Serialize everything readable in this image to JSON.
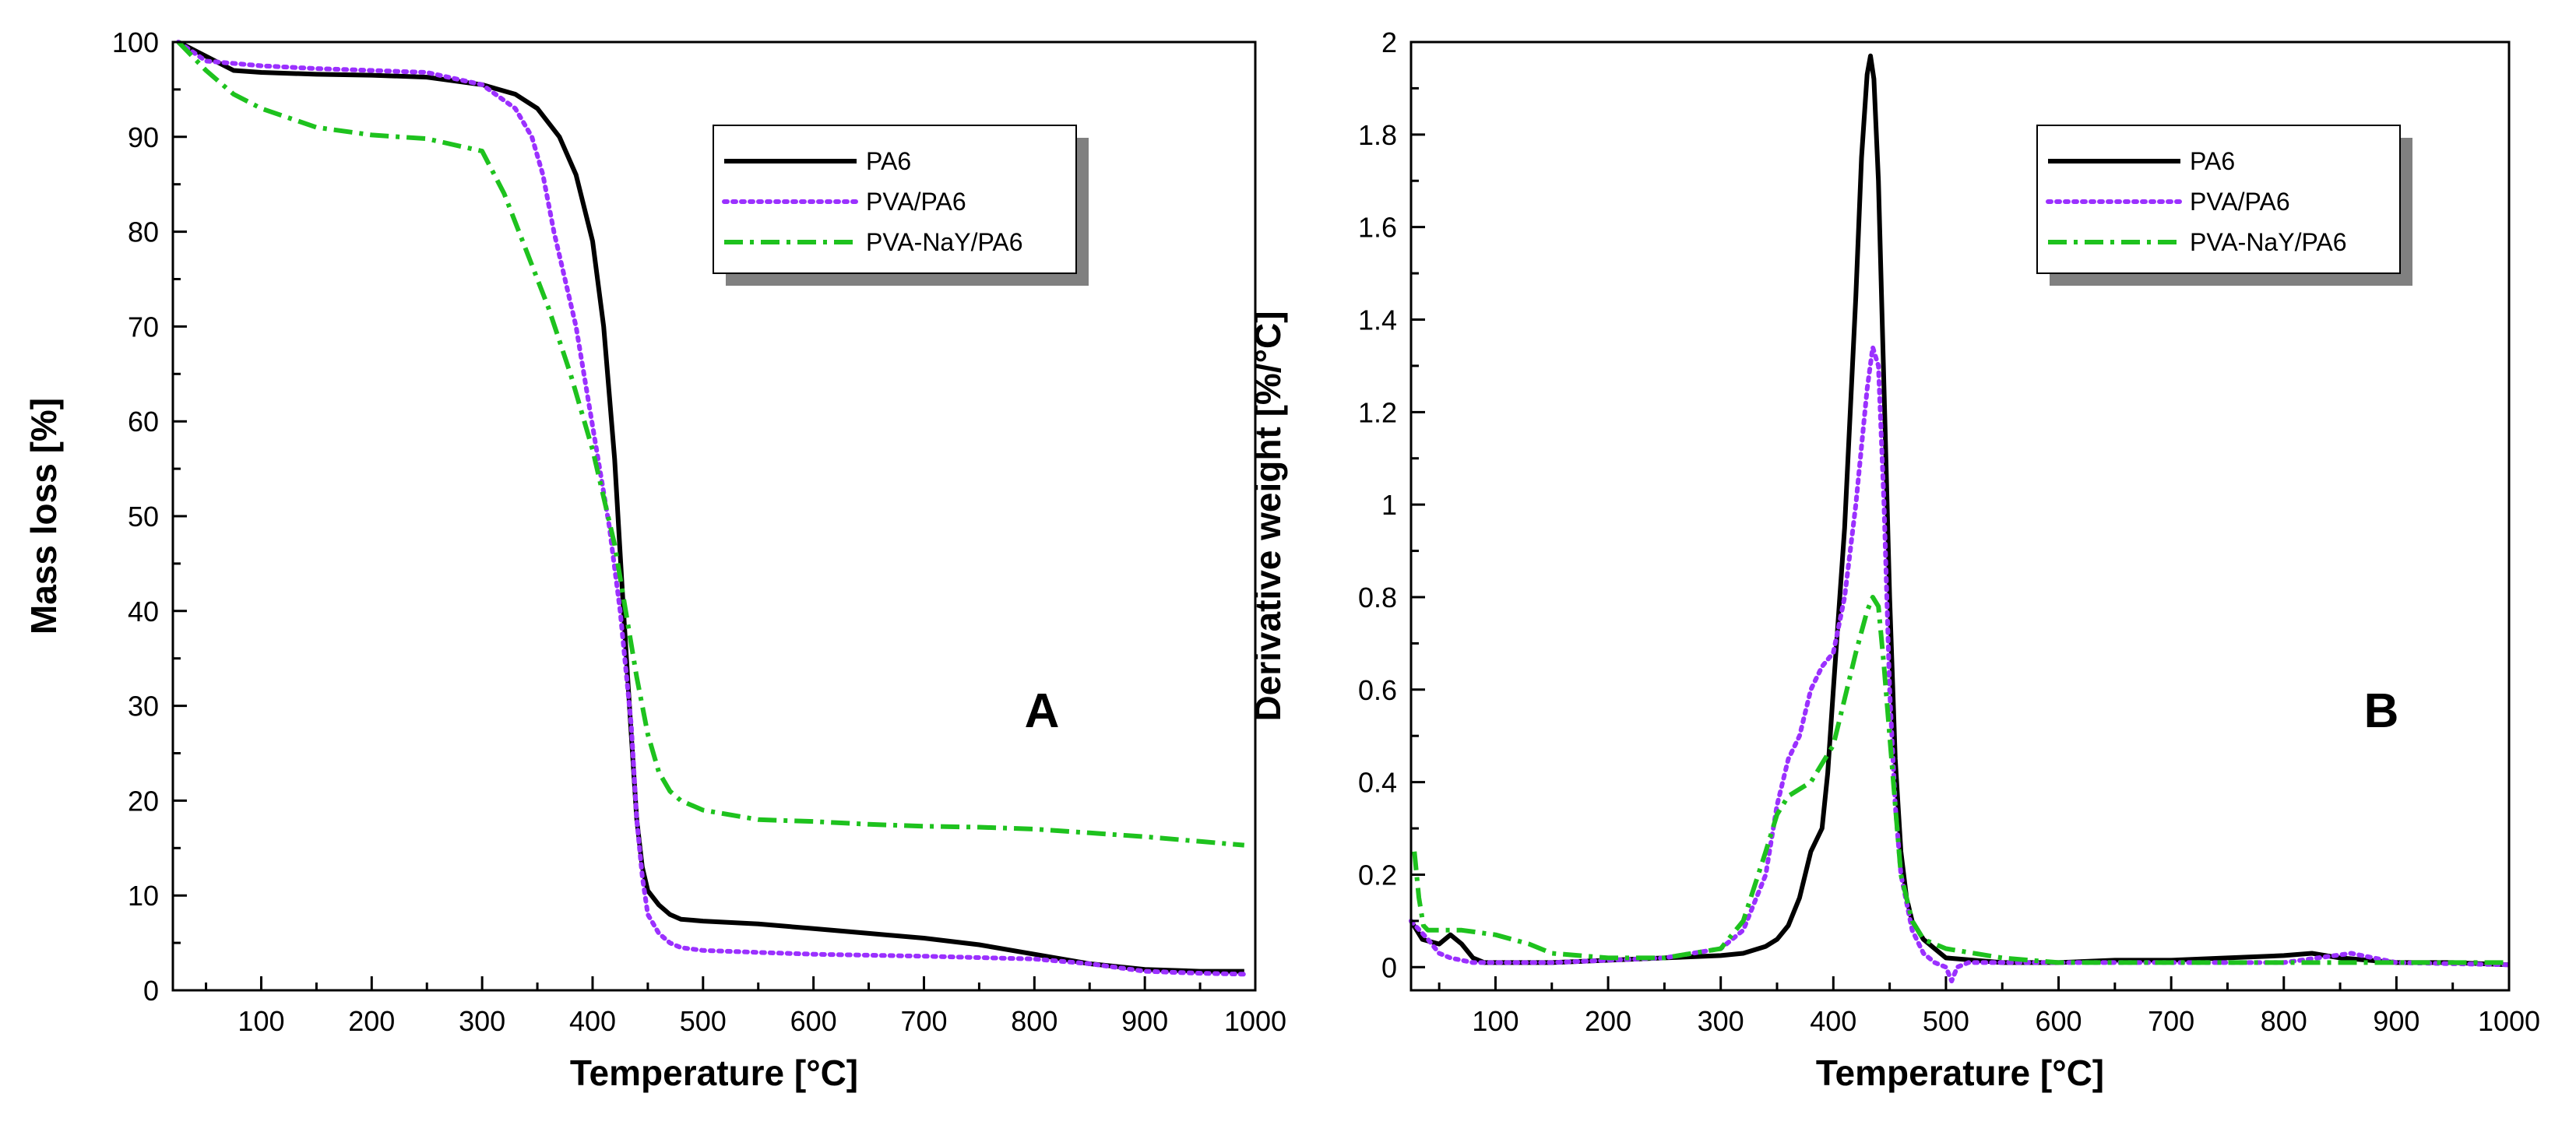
{
  "chart_data": [
    {
      "panel_label": "A",
      "type": "line",
      "xlabel": "Temperature [°C]",
      "ylabel": "Mass loss [%]",
      "xlim": [
        20,
        1000
      ],
      "ylim": [
        0,
        100
      ],
      "xticks": [
        100,
        200,
        300,
        400,
        500,
        600,
        700,
        800,
        900,
        1000
      ],
      "yticks": [
        0,
        10,
        20,
        30,
        40,
        50,
        60,
        70,
        80,
        90,
        100
      ],
      "xtick_labels": [
        "100",
        "200",
        "300",
        "400",
        "500",
        "600",
        "700",
        "800",
        "900",
        "1000"
      ],
      "ytick_labels": [
        "0",
        "10",
        "20",
        "30",
        "40",
        "50",
        "60",
        "70",
        "80",
        "90",
        "100"
      ],
      "grid": false,
      "legend_position": "top-right",
      "series": [
        {
          "name": "PA6",
          "color": "#000000",
          "style": "solid",
          "x": [
            25,
            50,
            75,
            100,
            150,
            200,
            250,
            300,
            330,
            350,
            370,
            385,
            400,
            410,
            420,
            428,
            435,
            440,
            445,
            450,
            460,
            470,
            480,
            500,
            550,
            600,
            650,
            700,
            750,
            800,
            850,
            900,
            950,
            990
          ],
          "y": [
            100,
            98.5,
            97,
            96.8,
            96.6,
            96.5,
            96.3,
            95.5,
            94.5,
            93,
            90,
            86,
            79,
            70,
            56,
            40,
            27,
            18,
            13,
            10.5,
            9,
            8,
            7.5,
            7.3,
            7.0,
            6.5,
            6.0,
            5.5,
            4.8,
            3.8,
            2.8,
            2.2,
            2.0,
            2.0
          ]
        },
        {
          "name": "PVA/PA6",
          "color": "#9b30ff",
          "style": "dotted",
          "x": [
            25,
            50,
            100,
            150,
            200,
            250,
            300,
            330,
            345,
            355,
            365,
            375,
            385,
            395,
            405,
            415,
            425,
            435,
            440,
            445,
            450,
            460,
            470,
            480,
            500,
            550,
            600,
            700,
            800,
            850,
            900,
            950,
            990
          ],
          "y": [
            100,
            98,
            97.5,
            97.2,
            97,
            96.8,
            95.5,
            93,
            90,
            86,
            80,
            75,
            70,
            63,
            56,
            49,
            40,
            28,
            18,
            12,
            8,
            6,
            5,
            4.5,
            4.2,
            4.0,
            3.8,
            3.6,
            3.3,
            2.8,
            2.0,
            1.8,
            1.7
          ]
        },
        {
          "name": "PVA-NaY/PA6",
          "color": "#1ec21e",
          "style": "dashdot",
          "x": [
            25,
            50,
            75,
            100,
            150,
            200,
            250,
            300,
            320,
            340,
            360,
            380,
            400,
            420,
            430,
            440,
            450,
            460,
            470,
            480,
            500,
            550,
            600,
            650,
            700,
            750,
            800,
            850,
            900,
            950,
            990
          ],
          "y": [
            100,
            97,
            94.5,
            93,
            91,
            90.2,
            89.8,
            88.5,
            84,
            78,
            72,
            65,
            57,
            47,
            40,
            33,
            27,
            23,
            21,
            20,
            19,
            18,
            17.8,
            17.5,
            17.3,
            17.2,
            17.0,
            16.6,
            16.2,
            15.7,
            15.3
          ]
        }
      ]
    },
    {
      "panel_label": "B",
      "type": "line",
      "xlabel": "Temperature [°C]",
      "ylabel": "Derivative weight [%/°C]",
      "xlim": [
        25,
        1000
      ],
      "ylim": [
        -0.05,
        2.0
      ],
      "xticks": [
        100,
        200,
        300,
        400,
        500,
        600,
        700,
        800,
        900,
        1000
      ],
      "yticks": [
        0,
        0.2,
        0.4,
        0.6,
        0.8,
        1.0,
        1.2,
        1.4,
        1.6,
        1.8,
        2.0
      ],
      "xtick_labels": [
        "100",
        "200",
        "300",
        "400",
        "500",
        "600",
        "700",
        "800",
        "900",
        "1000"
      ],
      "ytick_labels": [
        "0",
        "0.2",
        "0.4",
        "0.6",
        "0.8",
        "1",
        "1.2",
        "1.4",
        "1.6",
        "1.8",
        "2"
      ],
      "grid": false,
      "legend_position": "top-right",
      "series": [
        {
          "name": "PA6",
          "color": "#000000",
          "style": "solid",
          "x": [
            25,
            35,
            50,
            60,
            70,
            80,
            90,
            100,
            150,
            200,
            250,
            300,
            320,
            340,
            350,
            360,
            370,
            380,
            390,
            395,
            400,
            410,
            420,
            425,
            430,
            433,
            436,
            440,
            445,
            450,
            455,
            460,
            465,
            470,
            480,
            500,
            550,
            600,
            650,
            700,
            750,
            800,
            825,
            850,
            900,
            950,
            1000
          ],
          "y": [
            0.1,
            0.06,
            0.05,
            0.07,
            0.05,
            0.02,
            0.01,
            0.01,
            0.01,
            0.015,
            0.02,
            0.025,
            0.03,
            0.045,
            0.06,
            0.09,
            0.15,
            0.25,
            0.3,
            0.42,
            0.6,
            0.95,
            1.45,
            1.75,
            1.93,
            1.97,
            1.92,
            1.7,
            1.25,
            0.8,
            0.45,
            0.25,
            0.15,
            0.1,
            0.06,
            0.02,
            0.01,
            0.01,
            0.015,
            0.015,
            0.02,
            0.025,
            0.03,
            0.02,
            0.01,
            0.01,
            0.005
          ]
        },
        {
          "name": "PVA/PA6",
          "color": "#9b30ff",
          "style": "dotted",
          "x": [
            25,
            40,
            50,
            60,
            80,
            100,
            150,
            200,
            250,
            300,
            320,
            340,
            350,
            360,
            370,
            380,
            390,
            400,
            410,
            420,
            430,
            435,
            440,
            445,
            450,
            455,
            460,
            470,
            480,
            490,
            500,
            505,
            510,
            520,
            550,
            600,
            700,
            800,
            860,
            900,
            1000
          ],
          "y": [
            0.1,
            0.06,
            0.03,
            0.02,
            0.01,
            0.01,
            0.01,
            0.015,
            0.02,
            0.04,
            0.08,
            0.2,
            0.35,
            0.45,
            0.5,
            0.6,
            0.65,
            0.68,
            0.8,
            1.0,
            1.25,
            1.34,
            1.3,
            1.0,
            0.6,
            0.35,
            0.2,
            0.08,
            0.03,
            0.01,
            0.0,
            -0.03,
            0.0,
            0.01,
            0.01,
            0.01,
            0.01,
            0.01,
            0.03,
            0.01,
            0.005
          ]
        },
        {
          "name": "PVA-NaY/PA6",
          "color": "#1ec21e",
          "style": "dashdot",
          "x": [
            28,
            32,
            36,
            40,
            50,
            70,
            100,
            130,
            150,
            200,
            250,
            300,
            320,
            340,
            350,
            360,
            380,
            400,
            410,
            420,
            430,
            435,
            440,
            445,
            450,
            455,
            460,
            470,
            480,
            500,
            550,
            600,
            700,
            800,
            900,
            1000
          ],
          "y": [
            0.25,
            0.15,
            0.09,
            0.08,
            0.08,
            0.08,
            0.07,
            0.05,
            0.03,
            0.02,
            0.02,
            0.04,
            0.1,
            0.25,
            0.33,
            0.37,
            0.4,
            0.48,
            0.58,
            0.68,
            0.77,
            0.8,
            0.78,
            0.65,
            0.5,
            0.35,
            0.2,
            0.1,
            0.06,
            0.04,
            0.02,
            0.01,
            0.01,
            0.01,
            0.01,
            0.01
          ]
        }
      ]
    }
  ]
}
